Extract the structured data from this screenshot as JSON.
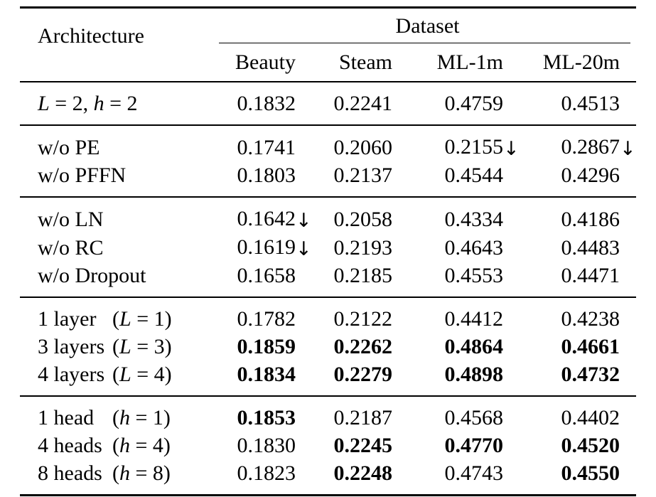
{
  "page": {
    "background": "#ffffff",
    "text_color": "#000000"
  },
  "table": {
    "header": {
      "architecture": "Architecture",
      "dataset": "Dataset",
      "columns": [
        "Beauty",
        "Steam",
        "ML-1m",
        "ML-20m"
      ]
    },
    "arrow": "↓",
    "groups": [
      {
        "rows": [
          {
            "label": [
              {
                "t": "L",
                "i": true
              },
              {
                "t": " = 2, "
              },
              {
                "t": "h",
                "i": true
              },
              {
                "t": " = 2"
              }
            ],
            "values": [
              {
                "v": "0.1832"
              },
              {
                "v": "0.2241"
              },
              {
                "v": "0.4759"
              },
              {
                "v": "0.4513"
              }
            ]
          }
        ]
      },
      {
        "rows": [
          {
            "label": [
              {
                "t": "w/o PE"
              }
            ],
            "values": [
              {
                "v": "0.1741"
              },
              {
                "v": "0.2060"
              },
              {
                "v": "0.2155",
                "d": true
              },
              {
                "v": "0.2867",
                "d": true
              }
            ]
          },
          {
            "label": [
              {
                "t": "w/o PFFN"
              }
            ],
            "values": [
              {
                "v": "0.1803"
              },
              {
                "v": "0.2137"
              },
              {
                "v": "0.4544"
              },
              {
                "v": "0.4296"
              }
            ]
          }
        ]
      },
      {
        "rows": [
          {
            "label": [
              {
                "t": "w/o LN"
              }
            ],
            "values": [
              {
                "v": "0.1642",
                "d": true
              },
              {
                "v": "0.2058"
              },
              {
                "v": "0.4334"
              },
              {
                "v": "0.4186"
              }
            ]
          },
          {
            "label": [
              {
                "t": "w/o RC"
              }
            ],
            "values": [
              {
                "v": "0.1619",
                "d": true
              },
              {
                "v": "0.2193"
              },
              {
                "v": "0.4643"
              },
              {
                "v": "0.4483"
              }
            ]
          },
          {
            "label": [
              {
                "t": "w/o Dropout"
              }
            ],
            "values": [
              {
                "v": "0.1658"
              },
              {
                "v": "0.2185"
              },
              {
                "v": "0.4553"
              },
              {
                "v": "0.4471"
              }
            ]
          }
        ]
      },
      {
        "rows": [
          {
            "label": [
              {
                "t": "1 layer"
              }
            ],
            "paren": [
              {
                "t": "("
              },
              {
                "t": "L",
                "i": true
              },
              {
                "t": " = 1)"
              }
            ],
            "values": [
              {
                "v": "0.1782"
              },
              {
                "v": "0.2122"
              },
              {
                "v": "0.4412"
              },
              {
                "v": "0.4238"
              }
            ]
          },
          {
            "label": [
              {
                "t": "3 layers"
              }
            ],
            "paren": [
              {
                "t": "("
              },
              {
                "t": "L",
                "i": true
              },
              {
                "t": " = 3)"
              }
            ],
            "values": [
              {
                "v": "0.1859",
                "b": true
              },
              {
                "v": "0.2262",
                "b": true
              },
              {
                "v": "0.4864",
                "b": true
              },
              {
                "v": "0.4661",
                "b": true
              }
            ]
          },
          {
            "label": [
              {
                "t": "4 layers"
              }
            ],
            "paren": [
              {
                "t": "("
              },
              {
                "t": "L",
                "i": true
              },
              {
                "t": " = 4)"
              }
            ],
            "values": [
              {
                "v": "0.1834",
                "b": true
              },
              {
                "v": "0.2279",
                "b": true
              },
              {
                "v": "0.4898",
                "b": true
              },
              {
                "v": "0.4732",
                "b": true
              }
            ]
          }
        ]
      },
      {
        "rows": [
          {
            "label": [
              {
                "t": "1 head"
              }
            ],
            "paren": [
              {
                "t": "("
              },
              {
                "t": "h",
                "i": true
              },
              {
                "t": " = 1)"
              }
            ],
            "values": [
              {
                "v": "0.1853",
                "b": true
              },
              {
                "v": "0.2187"
              },
              {
                "v": "0.4568"
              },
              {
                "v": "0.4402"
              }
            ]
          },
          {
            "label": [
              {
                "t": "4 heads"
              }
            ],
            "paren": [
              {
                "t": "("
              },
              {
                "t": "h",
                "i": true
              },
              {
                "t": " = 4)"
              }
            ],
            "values": [
              {
                "v": "0.1830"
              },
              {
                "v": "0.2245",
                "b": true
              },
              {
                "v": "0.4770",
                "b": true
              },
              {
                "v": "0.4520",
                "b": true
              }
            ]
          },
          {
            "label": [
              {
                "t": "8 heads"
              }
            ],
            "paren": [
              {
                "t": "("
              },
              {
                "t": "h",
                "i": true
              },
              {
                "t": " = 8)"
              }
            ],
            "values": [
              {
                "v": "0.1823"
              },
              {
                "v": "0.2248",
                "b": true
              },
              {
                "v": "0.4743"
              },
              {
                "v": "0.4550",
                "b": true
              }
            ]
          }
        ]
      }
    ]
  }
}
